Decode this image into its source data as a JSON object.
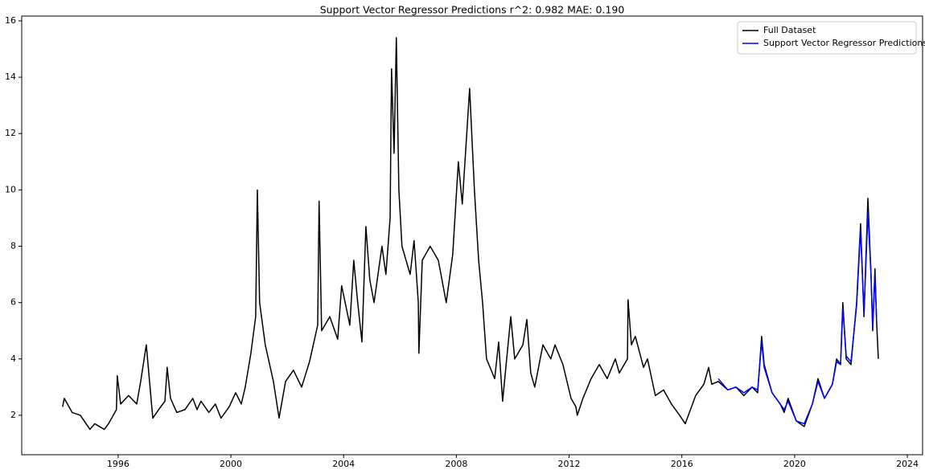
{
  "chart_data": {
    "type": "line",
    "title": "Support Vector Regressor Predictions r^2: 0.982 MAE: 0.190",
    "xlim": [
      1992.58,
      2024.54
    ],
    "ylim": [
      0.6,
      16.17
    ],
    "xticks": [
      1996,
      2000,
      2004,
      2008,
      2012,
      2016,
      2020,
      2024
    ],
    "yticks": [
      2,
      4,
      6,
      8,
      10,
      12,
      14,
      16
    ],
    "legend": "upper right",
    "series": [
      {
        "name": "Full Dataset",
        "color": "#000000",
        "x": [
          1994.03,
          1994.09,
          1994.37,
          1994.66,
          1995.0,
          1995.17,
          1995.51,
          1995.66,
          1995.94,
          1995.97,
          1996.09,
          1996.37,
          1996.66,
          1996.8,
          1997.0,
          1997.23,
          1997.51,
          1997.66,
          1997.74,
          1997.86,
          1998.08,
          1998.37,
          1998.65,
          1998.8,
          1998.94,
          1999.22,
          1999.45,
          1999.65,
          1999.94,
          2000.17,
          2000.37,
          2000.51,
          2000.71,
          2000.88,
          2000.94,
          2001.02,
          2001.22,
          2001.51,
          2001.71,
          2001.94,
          2002.22,
          2002.51,
          2002.79,
          2003.08,
          2003.13,
          2003.22,
          2003.51,
          2003.79,
          2003.93,
          2004.22,
          2004.36,
          2004.5,
          2004.65,
          2004.79,
          2004.93,
          2005.08,
          2005.36,
          2005.5,
          2005.65,
          2005.7,
          2005.79,
          2005.87,
          2005.96,
          2006.07,
          2006.36,
          2006.5,
          2006.65,
          2006.67,
          2006.79,
          2007.07,
          2007.36,
          2007.64,
          2007.87,
          2008.07,
          2008.21,
          2008.47,
          2008.64,
          2008.79,
          2008.93,
          2009.07,
          2009.36,
          2009.5,
          2009.64,
          2009.93,
          2010.07,
          2010.36,
          2010.5,
          2010.64,
          2010.78,
          2011.07,
          2011.35,
          2011.5,
          2011.78,
          2012.07,
          2012.24,
          2012.29,
          2012.49,
          2012.78,
          2013.07,
          2013.35,
          2013.64,
          2013.78,
          2014.07,
          2014.09,
          2014.21,
          2014.35,
          2014.64,
          2014.78,
          2015.06,
          2015.35,
          2015.63,
          2015.92,
          2016.12,
          2016.49,
          2016.78,
          2016.95,
          2017.06,
          2017.29,
          2017.63,
          2017.92,
          2018.2,
          2018.49,
          2018.69,
          2018.83,
          2018.92,
          2019.2,
          2019.49,
          2019.63,
          2019.77,
          2020.06,
          2020.34,
          2020.63,
          2020.83,
          2021.06,
          2021.34,
          2021.49,
          2021.63,
          2021.71,
          2021.83,
          2022.0,
          2022.2,
          2022.34,
          2022.46,
          2022.6,
          2022.71,
          2022.77,
          2022.85,
          2022.91,
          2022.97
        ],
        "values": [
          2.3,
          2.6,
          2.1,
          2.0,
          1.5,
          1.7,
          1.5,
          1.7,
          2.2,
          3.4,
          2.4,
          2.7,
          2.4,
          3.2,
          4.5,
          1.9,
          2.3,
          2.5,
          3.7,
          2.6,
          2.1,
          2.2,
          2.6,
          2.2,
          2.5,
          2.1,
          2.4,
          1.9,
          2.3,
          2.8,
          2.4,
          3.0,
          4.2,
          5.5,
          10.0,
          6.0,
          4.5,
          3.2,
          1.9,
          3.2,
          3.6,
          3.0,
          3.9,
          5.2,
          9.6,
          5.0,
          5.5,
          4.7,
          6.6,
          5.2,
          7.5,
          6.0,
          4.6,
          8.7,
          6.8,
          6.0,
          8.0,
          7.0,
          9.0,
          14.3,
          11.3,
          15.4,
          10.0,
          8.0,
          7.0,
          8.2,
          6.0,
          4.2,
          7.5,
          8.0,
          7.5,
          6.0,
          7.7,
          11.0,
          9.5,
          13.6,
          10.0,
          7.5,
          6.0,
          4.0,
          3.3,
          4.6,
          2.5,
          5.5,
          4.0,
          4.5,
          5.4,
          3.5,
          3.0,
          4.5,
          4.0,
          4.5,
          3.8,
          2.6,
          2.3,
          2.0,
          2.6,
          3.3,
          3.8,
          3.3,
          4.0,
          3.5,
          4.0,
          6.1,
          4.5,
          4.8,
          3.7,
          4.0,
          2.7,
          2.9,
          2.4,
          2.0,
          1.7,
          2.7,
          3.1,
          3.7,
          3.1,
          3.2,
          2.9,
          3.0,
          2.7,
          3.0,
          2.8,
          4.8,
          3.8,
          2.8,
          2.4,
          2.1,
          2.6,
          1.8,
          1.6,
          2.4,
          3.3,
          2.6,
          3.1,
          4.0,
          3.8,
          6.0,
          4.0,
          3.8,
          6.0,
          8.8,
          5.5,
          9.7,
          7.0,
          5.0,
          7.2,
          5.3,
          4.0
        ]
      },
      {
        "name": "Support Vector Regressor Predictions",
        "color": "#0000ff",
        "x": [
          2017.29,
          2017.63,
          2017.92,
          2018.2,
          2018.49,
          2018.69,
          2018.83,
          2018.92,
          2019.2,
          2019.49,
          2019.63,
          2019.77,
          2020.06,
          2020.34,
          2020.63,
          2020.83,
          2021.06,
          2021.34,
          2021.49,
          2021.63,
          2021.71,
          2021.83,
          2022.0,
          2022.2,
          2022.34,
          2022.46,
          2022.6,
          2022.71,
          2022.77,
          2022.85,
          2022.91
        ],
        "values": [
          3.3,
          2.9,
          3.0,
          2.8,
          3.0,
          2.9,
          4.6,
          3.7,
          2.8,
          2.4,
          2.2,
          2.5,
          1.8,
          1.7,
          2.4,
          3.2,
          2.6,
          3.1,
          3.9,
          3.8,
          5.8,
          4.1,
          3.9,
          5.9,
          8.6,
          5.6,
          9.2,
          7.0,
          5.1,
          7.0,
          5.3
        ]
      }
    ]
  }
}
